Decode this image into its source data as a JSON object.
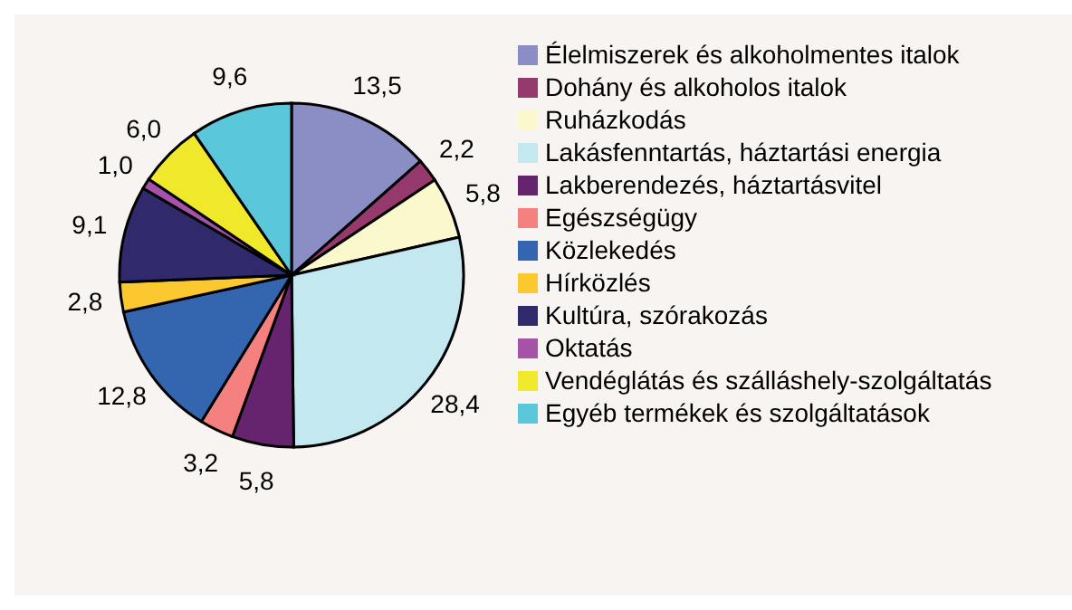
{
  "chart_data": {
    "type": "pie",
    "categories": [
      "Élelmiszerek és alkoholmentes italok",
      "Dohány és alkoholos italok",
      "Ruházkodás",
      "Lakásfenntartás, háztartási energia",
      "Lakberendezés, háztartásvitel",
      "Egészségügy",
      "Közlekedés",
      "Hírközlés",
      "Kultúra, szórakozás",
      "Oktatás",
      "Vendéglátás és szálláshely-szolgáltatás",
      "Egyéb termékek és szolgáltatások"
    ],
    "values": [
      13.5,
      2.2,
      5.8,
      28.4,
      5.8,
      3.2,
      12.8,
      2.8,
      9.1,
      1.0,
      6.0,
      9.6
    ],
    "value_labels": [
      "13,5",
      "2,2",
      "5,8",
      "28,4",
      "5,8",
      "3,2",
      "12,8",
      "2,8",
      "9,1",
      "1,0",
      "6,0",
      "9,6"
    ],
    "colors": [
      "#8b8ec4",
      "#963a6e",
      "#faf8cc",
      "#c4e8ef",
      "#66246e",
      "#f48080",
      "#3466b0",
      "#fcc830",
      "#302a6c",
      "#a552a8",
      "#f0e82a",
      "#5ac8da"
    ],
    "legend": "right"
  }
}
